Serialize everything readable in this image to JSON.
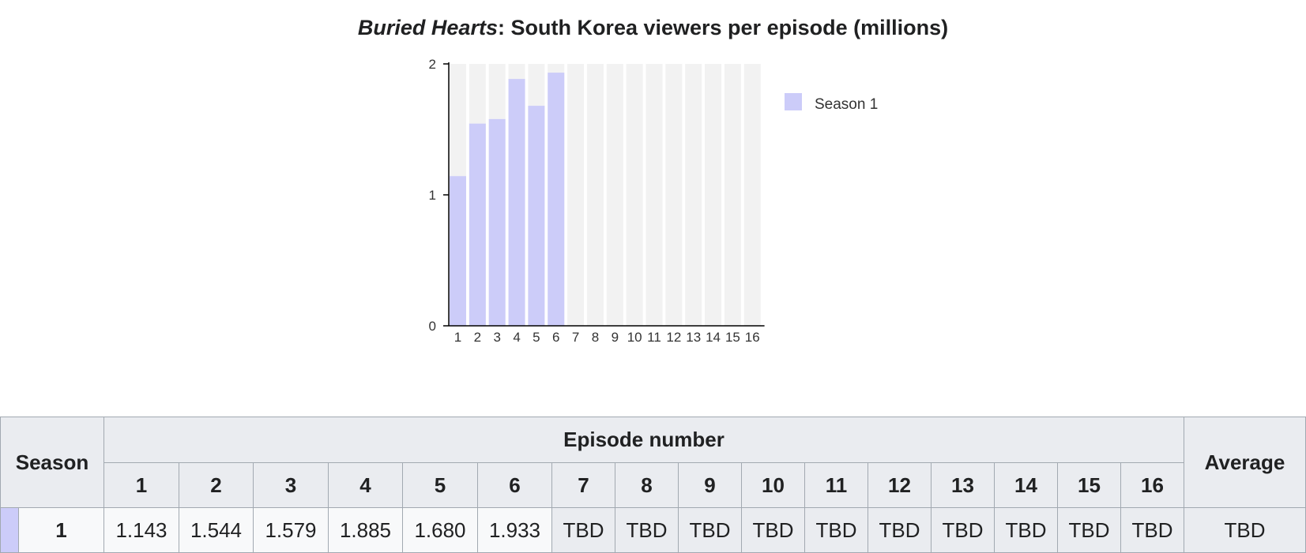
{
  "title": {
    "italic": "Buried Hearts",
    "rest": ": South Korea viewers per episode (millions)"
  },
  "chart_data": {
    "type": "bar",
    "categories": [
      "1",
      "2",
      "3",
      "4",
      "5",
      "6",
      "7",
      "8",
      "9",
      "10",
      "11",
      "12",
      "13",
      "14",
      "15",
      "16"
    ],
    "series": [
      {
        "name": "Season 1",
        "color": "#ccccf9",
        "values": [
          1.143,
          1.544,
          1.579,
          1.885,
          1.68,
          1.933,
          null,
          null,
          null,
          null,
          null,
          null,
          null,
          null,
          null,
          null
        ]
      }
    ],
    "yticks": [
      "0",
      "1",
      "2"
    ],
    "ylim": [
      0,
      2
    ],
    "column_background": "#f2f2f2",
    "legend_position": "right",
    "grid": false
  },
  "table": {
    "season_header": "Season",
    "episode_header": "Episode number",
    "average_header": "Average",
    "episodes": [
      "1",
      "2",
      "3",
      "4",
      "5",
      "6",
      "7",
      "8",
      "9",
      "10",
      "11",
      "12",
      "13",
      "14",
      "15",
      "16"
    ],
    "rows": [
      {
        "season": "1",
        "swatch_color": "#ccccf9",
        "values": [
          "1.143",
          "1.544",
          "1.579",
          "1.885",
          "1.680",
          "1.933",
          "TBD",
          "TBD",
          "TBD",
          "TBD",
          "TBD",
          "TBD",
          "TBD",
          "TBD",
          "TBD",
          "TBD"
        ],
        "average": "TBD"
      }
    ]
  }
}
